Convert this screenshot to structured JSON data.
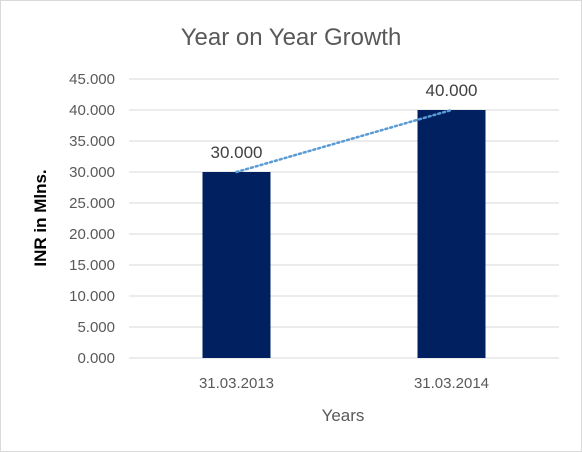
{
  "chart_data": {
    "type": "bar",
    "title": "Year on Year Growth",
    "xlabel": "Years",
    "ylabel": "INR in Mlns.",
    "categories": [
      "31.03.2013",
      "31.03.2014"
    ],
    "values": [
      30,
      40
    ],
    "data_labels": [
      "30.000",
      "40.000"
    ],
    "ylim": [
      0,
      45
    ],
    "y_ticks": [
      0,
      5,
      10,
      15,
      20,
      25,
      30,
      35,
      40,
      45
    ],
    "y_tick_labels": [
      "0.000",
      "5.000",
      "10.000",
      "15.000",
      "20.000",
      "25.000",
      "30.000",
      "35.000",
      "40.000",
      "45.000"
    ],
    "grid": true,
    "legend": "none",
    "trendline": "linear, dotted",
    "colors": {
      "bar": "#002060",
      "trendline": "#5b9bd5",
      "grid": "#d9d9d9",
      "text": "#595959"
    }
  }
}
